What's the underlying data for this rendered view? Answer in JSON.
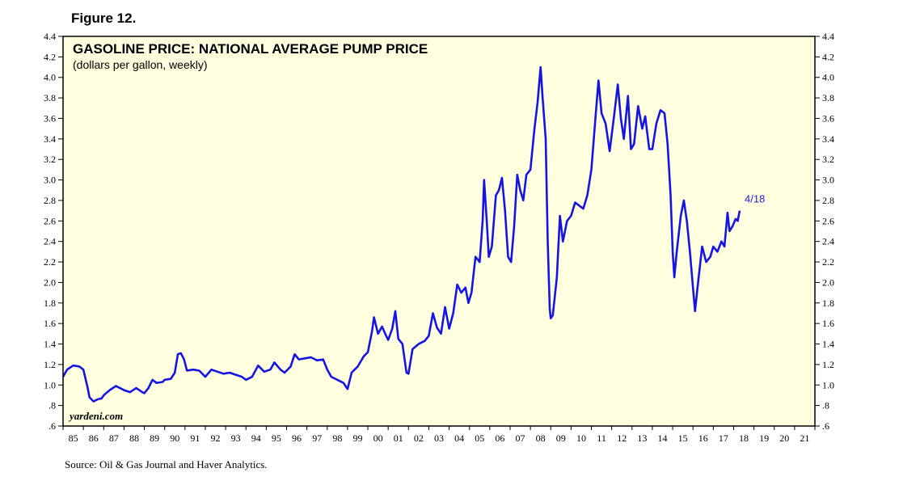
{
  "figure_label": "Figure 12.",
  "source": "Source: Oil & Gas Journal and Haver Analytics.",
  "watermark": "yardeni.com",
  "colors": {
    "plot_bg": "#ffffe0",
    "line": "#1414e6",
    "end_label": "#1f1fd6"
  },
  "chart_data": {
    "type": "line",
    "title": "GASOLINE PRICE: NATIONAL AVERAGE PUMP PRICE",
    "subtitle": "(dollars per gallon, weekly)",
    "end_label": "4/18",
    "xlabel": "",
    "ylabel": "",
    "xlim": [
      1985,
      2022
    ],
    "ylim": [
      0.6,
      4.4
    ],
    "y_ticks": [
      ".6",
      ".8",
      "1.0",
      "1.2",
      "1.4",
      "1.6",
      "1.8",
      "2.0",
      "2.2",
      "2.4",
      "2.6",
      "2.8",
      "3.0",
      "3.2",
      "3.4",
      "3.6",
      "3.8",
      "4.0",
      "4.2",
      "4.4"
    ],
    "x_ticks": [
      "85",
      "86",
      "87",
      "88",
      "89",
      "90",
      "91",
      "92",
      "93",
      "94",
      "95",
      "96",
      "97",
      "98",
      "99",
      "00",
      "01",
      "02",
      "03",
      "04",
      "05",
      "06",
      "07",
      "08",
      "09",
      "10",
      "11",
      "12",
      "13",
      "14",
      "15",
      "16",
      "17",
      "18",
      "19",
      "20",
      "21"
    ],
    "series": [
      {
        "name": "National average pump price",
        "points": [
          [
            1985.0,
            1.08
          ],
          [
            1985.2,
            1.15
          ],
          [
            1985.5,
            1.19
          ],
          [
            1985.8,
            1.18
          ],
          [
            1986.0,
            1.15
          ],
          [
            1986.2,
            0.98
          ],
          [
            1986.3,
            0.88
          ],
          [
            1986.5,
            0.84
          ],
          [
            1986.7,
            0.86
          ],
          [
            1986.9,
            0.87
          ],
          [
            1987.0,
            0.9
          ],
          [
            1987.3,
            0.95
          ],
          [
            1987.6,
            0.99
          ],
          [
            1987.9,
            0.96
          ],
          [
            1988.0,
            0.95
          ],
          [
            1988.3,
            0.93
          ],
          [
            1988.6,
            0.97
          ],
          [
            1988.9,
            0.93
          ],
          [
            1989.0,
            0.92
          ],
          [
            1989.2,
            0.97
          ],
          [
            1989.4,
            1.05
          ],
          [
            1989.6,
            1.02
          ],
          [
            1989.9,
            1.03
          ],
          [
            1990.0,
            1.05
          ],
          [
            1990.3,
            1.06
          ],
          [
            1990.5,
            1.12
          ],
          [
            1990.65,
            1.3
          ],
          [
            1990.8,
            1.31
          ],
          [
            1990.95,
            1.25
          ],
          [
            1991.1,
            1.14
          ],
          [
            1991.4,
            1.15
          ],
          [
            1991.7,
            1.14
          ],
          [
            1992.0,
            1.08
          ],
          [
            1992.3,
            1.15
          ],
          [
            1992.6,
            1.13
          ],
          [
            1992.9,
            1.11
          ],
          [
            1993.2,
            1.12
          ],
          [
            1993.5,
            1.1
          ],
          [
            1993.8,
            1.08
          ],
          [
            1994.0,
            1.05
          ],
          [
            1994.3,
            1.08
          ],
          [
            1994.6,
            1.19
          ],
          [
            1994.9,
            1.13
          ],
          [
            1995.2,
            1.15
          ],
          [
            1995.4,
            1.22
          ],
          [
            1995.7,
            1.15
          ],
          [
            1995.9,
            1.12
          ],
          [
            1996.2,
            1.18
          ],
          [
            1996.4,
            1.3
          ],
          [
            1996.6,
            1.25
          ],
          [
            1996.9,
            1.26
          ],
          [
            1997.2,
            1.27
          ],
          [
            1997.5,
            1.24
          ],
          [
            1997.8,
            1.25
          ],
          [
            1998.0,
            1.15
          ],
          [
            1998.2,
            1.08
          ],
          [
            1998.5,
            1.05
          ],
          [
            1998.8,
            1.02
          ],
          [
            1999.0,
            0.96
          ],
          [
            1999.2,
            1.12
          ],
          [
            1999.5,
            1.18
          ],
          [
            1999.8,
            1.28
          ],
          [
            2000.0,
            1.32
          ],
          [
            2000.2,
            1.52
          ],
          [
            2000.3,
            1.66
          ],
          [
            2000.5,
            1.5
          ],
          [
            2000.7,
            1.57
          ],
          [
            2000.9,
            1.48
          ],
          [
            2001.0,
            1.44
          ],
          [
            2001.2,
            1.55
          ],
          [
            2001.35,
            1.72
          ],
          [
            2001.5,
            1.45
          ],
          [
            2001.7,
            1.4
          ],
          [
            2001.9,
            1.12
          ],
          [
            2002.0,
            1.11
          ],
          [
            2002.2,
            1.35
          ],
          [
            2002.5,
            1.4
          ],
          [
            2002.8,
            1.43
          ],
          [
            2003.0,
            1.48
          ],
          [
            2003.2,
            1.7
          ],
          [
            2003.4,
            1.56
          ],
          [
            2003.6,
            1.5
          ],
          [
            2003.8,
            1.76
          ],
          [
            2004.0,
            1.55
          ],
          [
            2004.2,
            1.7
          ],
          [
            2004.4,
            1.98
          ],
          [
            2004.6,
            1.9
          ],
          [
            2004.8,
            1.95
          ],
          [
            2004.95,
            1.8
          ],
          [
            2005.1,
            1.9
          ],
          [
            2005.3,
            2.25
          ],
          [
            2005.5,
            2.2
          ],
          [
            2005.65,
            2.6
          ],
          [
            2005.72,
            3.0
          ],
          [
            2005.85,
            2.6
          ],
          [
            2005.95,
            2.25
          ],
          [
            2006.1,
            2.35
          ],
          [
            2006.3,
            2.85
          ],
          [
            2006.45,
            2.9
          ],
          [
            2006.6,
            3.02
          ],
          [
            2006.75,
            2.7
          ],
          [
            2006.9,
            2.25
          ],
          [
            2007.05,
            2.2
          ],
          [
            2007.2,
            2.55
          ],
          [
            2007.35,
            3.05
          ],
          [
            2007.5,
            2.9
          ],
          [
            2007.65,
            2.8
          ],
          [
            2007.8,
            3.05
          ],
          [
            2008.0,
            3.1
          ],
          [
            2008.2,
            3.5
          ],
          [
            2008.35,
            3.75
          ],
          [
            2008.5,
            4.1
          ],
          [
            2008.6,
            3.8
          ],
          [
            2008.75,
            3.4
          ],
          [
            2008.85,
            2.4
          ],
          [
            2008.95,
            1.75
          ],
          [
            2009.0,
            1.65
          ],
          [
            2009.1,
            1.68
          ],
          [
            2009.3,
            2.05
          ],
          [
            2009.45,
            2.65
          ],
          [
            2009.6,
            2.4
          ],
          [
            2009.8,
            2.6
          ],
          [
            2010.0,
            2.65
          ],
          [
            2010.2,
            2.78
          ],
          [
            2010.4,
            2.75
          ],
          [
            2010.6,
            2.72
          ],
          [
            2010.8,
            2.85
          ],
          [
            2011.0,
            3.1
          ],
          [
            2011.2,
            3.6
          ],
          [
            2011.35,
            3.97
          ],
          [
            2011.5,
            3.65
          ],
          [
            2011.7,
            3.55
          ],
          [
            2011.9,
            3.28
          ],
          [
            2012.1,
            3.6
          ],
          [
            2012.3,
            3.93
          ],
          [
            2012.45,
            3.6
          ],
          [
            2012.6,
            3.4
          ],
          [
            2012.8,
            3.82
          ],
          [
            2012.95,
            3.3
          ],
          [
            2013.1,
            3.35
          ],
          [
            2013.3,
            3.72
          ],
          [
            2013.5,
            3.5
          ],
          [
            2013.65,
            3.62
          ],
          [
            2013.85,
            3.3
          ],
          [
            2014.0,
            3.3
          ],
          [
            2014.2,
            3.55
          ],
          [
            2014.4,
            3.68
          ],
          [
            2014.6,
            3.65
          ],
          [
            2014.75,
            3.35
          ],
          [
            2014.9,
            2.85
          ],
          [
            2015.0,
            2.3
          ],
          [
            2015.08,
            2.05
          ],
          [
            2015.2,
            2.3
          ],
          [
            2015.4,
            2.65
          ],
          [
            2015.55,
            2.8
          ],
          [
            2015.7,
            2.6
          ],
          [
            2015.85,
            2.3
          ],
          [
            2016.0,
            1.95
          ],
          [
            2016.1,
            1.72
          ],
          [
            2016.25,
            2.0
          ],
          [
            2016.45,
            2.35
          ],
          [
            2016.65,
            2.2
          ],
          [
            2016.85,
            2.25
          ],
          [
            2017.0,
            2.35
          ],
          [
            2017.2,
            2.3
          ],
          [
            2017.4,
            2.4
          ],
          [
            2017.55,
            2.35
          ],
          [
            2017.7,
            2.68
          ],
          [
            2017.8,
            2.5
          ],
          [
            2017.95,
            2.55
          ],
          [
            2018.1,
            2.62
          ],
          [
            2018.2,
            2.6
          ],
          [
            2018.3,
            2.7
          ]
        ]
      }
    ]
  }
}
